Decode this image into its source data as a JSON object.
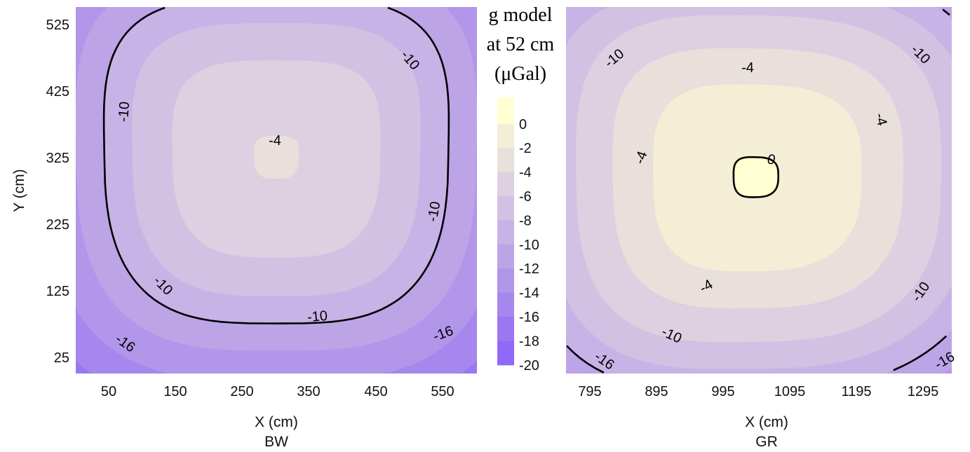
{
  "chart_data": [
    {
      "type": "contour",
      "panel_label": "BW",
      "xlabel": "X (cm)",
      "ylabel": "Y (cm)",
      "xlim": [
        0,
        600
      ],
      "ylim": [
        0,
        550
      ],
      "xticks": [
        "50",
        "150",
        "250",
        "350",
        "450",
        "550"
      ],
      "yticks": [
        "25",
        "125",
        "225",
        "325",
        "425",
        "525"
      ],
      "contour_lines": [
        -10
      ],
      "contour_labels": [
        "-10",
        "-10",
        "-10",
        "-10",
        "-10",
        "-4",
        "-16",
        "-16"
      ],
      "field_center": [
        300,
        325
      ]
    },
    {
      "type": "contour",
      "panel_label": "GR",
      "xlabel": "X (cm)",
      "ylabel": "",
      "xlim": [
        760,
        1340
      ],
      "ylim": [
        0,
        550
      ],
      "xticks": [
        "795",
        "895",
        "995",
        "1095",
        "1195",
        "1295"
      ],
      "contour_lines": [
        0,
        -10
      ],
      "contour_labels": [
        "-10",
        "-10",
        "-10",
        "-10",
        "-4",
        "-4",
        "-4",
        "-4",
        "0",
        "-16",
        "-16"
      ],
      "field_center": [
        1045,
        295
      ]
    }
  ],
  "legend": {
    "title": [
      "g model",
      "at 52 cm",
      "(μGal)"
    ],
    "levels": [
      "0",
      "-2",
      "-4",
      "-6",
      "-8",
      "-10",
      "-12",
      "-14",
      "-16",
      "-18",
      "-20"
    ],
    "colors": [
      "#ffffd2",
      "#f4eed6",
      "#e9dfdb",
      "#ddd0e0",
      "#d2c1e2",
      "#c7b3e5",
      "#bca4e7",
      "#b196ea",
      "#a687ed",
      "#9b78f1",
      "#9169f8"
    ]
  }
}
